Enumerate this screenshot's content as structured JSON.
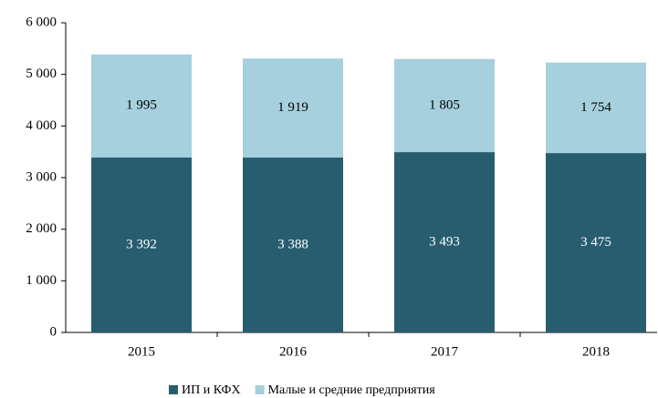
{
  "chart_data": {
    "type": "stacked_bar",
    "categories": [
      "2015",
      "2016",
      "2017",
      "2018"
    ],
    "series": [
      {
        "name": "ИП и КФХ",
        "color": "#285d70",
        "values": [
          3392,
          3388,
          3493,
          3475
        ],
        "value_labels": [
          "3 392",
          "3 388",
          "3 493",
          "3 475"
        ]
      },
      {
        "name": "Малые и средние предприятия",
        "color": "#a6d0de",
        "values": [
          1995,
          1919,
          1805,
          1754
        ],
        "value_labels": [
          "1 995",
          "1 919",
          "1 805",
          "1 754"
        ]
      }
    ],
    "ylim": [
      0,
      6000
    ],
    "yticks": [
      0,
      {
        "value": 1000,
        "label": "1 000"
      },
      {
        "value": 2000,
        "label": "2 000"
      },
      {
        "value": 3000,
        "label": "3 000"
      },
      {
        "value": 4000,
        "label": "4 000"
      },
      {
        "value": 5000,
        "label": "5 000"
      },
      {
        "value": 6000,
        "label": "6 000"
      }
    ],
    "grid": false,
    "legend": "bottom"
  }
}
